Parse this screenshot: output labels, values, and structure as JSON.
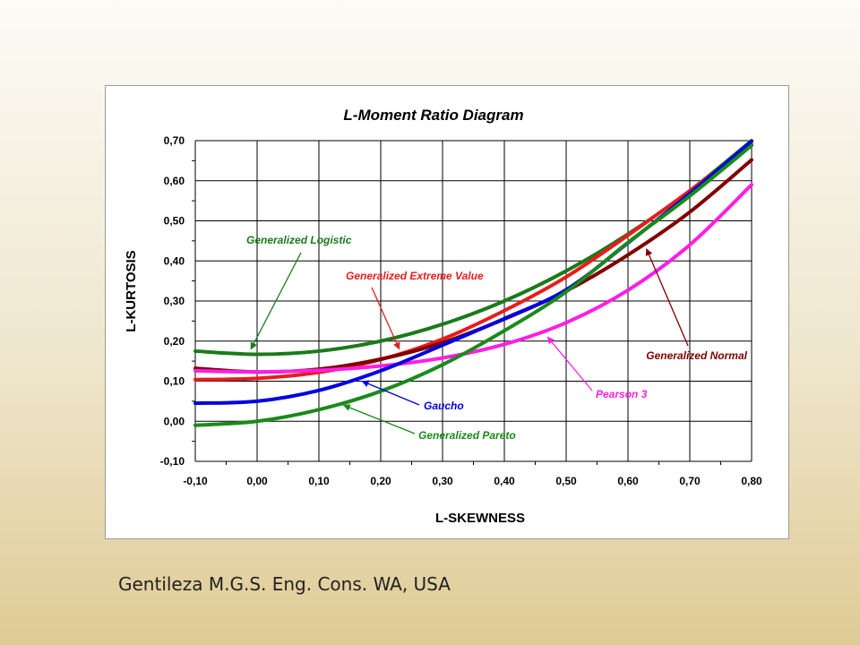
{
  "footer": {
    "credit": "Gentileza M.G.S. Eng. Cons. WA, USA"
  },
  "chart_data": {
    "type": "line",
    "title": "L-Moment Ratio Diagram",
    "xlabel": "L-SKEWNESS",
    "ylabel": "L-KURTOSIS",
    "xlim": [
      -0.1,
      0.8
    ],
    "ylim": [
      -0.1,
      0.7
    ],
    "x_ticks": [
      -0.1,
      0.0,
      0.1,
      0.2,
      0.3,
      0.4,
      0.5,
      0.6,
      0.7,
      0.8
    ],
    "y_ticks": [
      -0.1,
      0.0,
      0.1,
      0.2,
      0.3,
      0.4,
      0.5,
      0.6,
      0.7
    ],
    "x_tick_labels": [
      "-0,10",
      "0,00",
      "0,10",
      "0,20",
      "0,30",
      "0,40",
      "0,50",
      "0,60",
      "0,70",
      "0,80"
    ],
    "y_tick_labels": [
      "-0,10",
      "0,00",
      "0,10",
      "0,20",
      "0,30",
      "0,40",
      "0,50",
      "0,60",
      "0,70"
    ],
    "grid": true,
    "x": [
      -0.1,
      0.0,
      0.1,
      0.2,
      0.3,
      0.4,
      0.5,
      0.6,
      0.7,
      0.8
    ],
    "series": [
      {
        "name": "Generalized Logistic",
        "color": "#1a7a1a",
        "values": [
          0.175,
          0.167,
          0.175,
          0.2,
          0.242,
          0.3,
          0.375,
          0.467,
          0.575,
          0.7
        ],
        "arrow_to": [
          -0.01,
          0.18
        ]
      },
      {
        "name": "Generalized Extreme Value",
        "color": "#e81c1c",
        "values": [
          0.104,
          0.107,
          0.122,
          0.154,
          0.205,
          0.276,
          0.36,
          0.464,
          0.575,
          0.69
        ],
        "arrow_to": [
          0.23,
          0.18
        ]
      },
      {
        "name": "Generalized Normal",
        "color": "#800000",
        "values": [
          0.132,
          0.123,
          0.13,
          0.155,
          0.196,
          0.255,
          0.325,
          0.415,
          0.522,
          0.652
        ],
        "arrow_to": [
          0.63,
          0.43
        ]
      },
      {
        "name": "Pearson 3",
        "color": "#ff1ee6",
        "values": [
          0.126,
          0.123,
          0.127,
          0.138,
          0.158,
          0.192,
          0.246,
          0.327,
          0.44,
          0.59
        ],
        "arrow_to": [
          0.47,
          0.21
        ]
      },
      {
        "name": "Gaucho",
        "color": "#0000e0",
        "values": [
          0.045,
          0.05,
          0.077,
          0.126,
          0.19,
          0.256,
          0.328,
          0.445,
          0.568,
          0.698
        ],
        "arrow_to": [
          0.17,
          0.1
        ]
      },
      {
        "name": "Generalized Pareto",
        "color": "#1a8a1a",
        "values": [
          -0.01,
          0.0,
          0.029,
          0.075,
          0.141,
          0.226,
          0.323,
          0.446,
          0.562,
          0.688
        ],
        "arrow_to": [
          0.14,
          0.04
        ]
      }
    ]
  }
}
